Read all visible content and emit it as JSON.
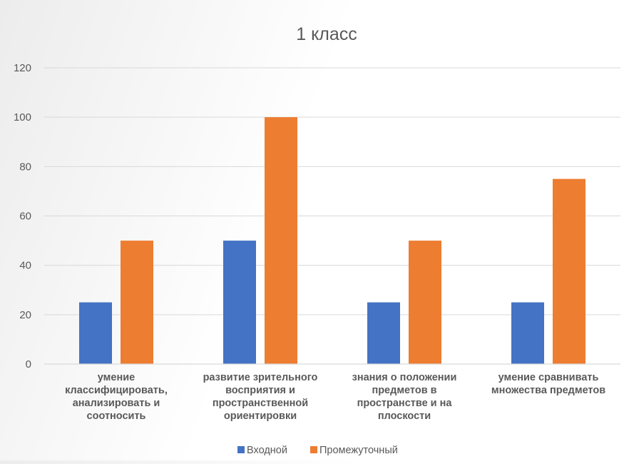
{
  "chart_data": {
    "type": "bar",
    "title": "1 класс",
    "xlabel": "",
    "ylabel": "",
    "ylim": [
      0,
      120
    ],
    "yticks": [
      0,
      20,
      40,
      60,
      80,
      100,
      120
    ],
    "grid": true,
    "legend_position": "bottom",
    "categories": [
      "умение классифицировать, анализировать и соотносить",
      "развитие зрительного восприятия и пространственной ориентировки",
      "знания о положении предметов в пространстве и на плоскости",
      "умение сравнивать множества предметов"
    ],
    "category_lines": [
      [
        "умение",
        "классифицировать,",
        "анализировать и",
        "соотносить"
      ],
      [
        "развитие зрительного",
        "восприятия и",
        "пространственной",
        "ориентировки"
      ],
      [
        "знания о положении",
        "предметов в",
        "пространстве и на",
        "плоскости"
      ],
      [
        "умение сравнивать",
        "множества предметов"
      ]
    ],
    "series": [
      {
        "name": "Входной",
        "color": "#4472C4",
        "values": [
          25,
          50,
          25,
          25
        ]
      },
      {
        "name": "Промежуточный",
        "color": "#ED7D31",
        "values": [
          50,
          100,
          50,
          75
        ]
      }
    ]
  }
}
